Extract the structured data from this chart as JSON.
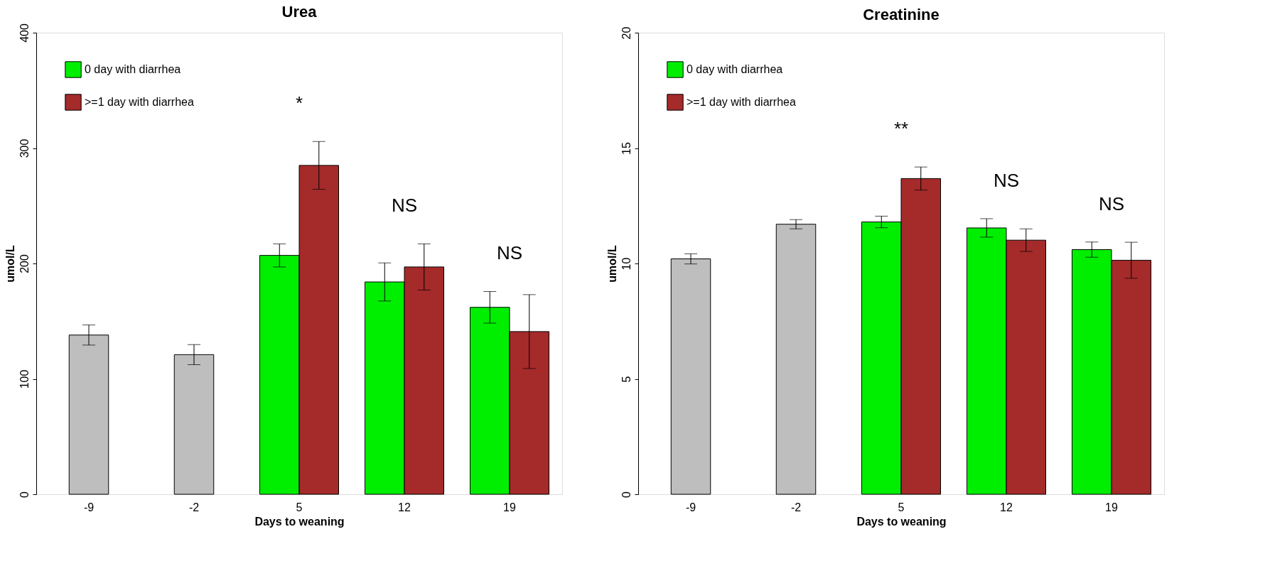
{
  "chart_data": [
    {
      "type": "bar",
      "title": "Urea",
      "xlabel": "Days to weaning",
      "ylabel": "umol/L",
      "categories": [
        "-9",
        "-2",
        "5",
        "12",
        "19"
      ],
      "series": [
        {
          "color": "#bebebe",
          "values": [
            138,
            121,
            null,
            null,
            null
          ],
          "errors": [
            8.7,
            8.7,
            null,
            null,
            null
          ]
        },
        {
          "name": "0 day with diarrhea",
          "color": "#00ee00",
          "values": [
            null,
            null,
            207,
            184,
            162
          ],
          "errors": [
            null,
            null,
            10,
            16.5,
            13.7
          ]
        },
        {
          "name": ">=1 day with diarrhea",
          "color": "#a52a2a",
          "values": [
            null,
            null,
            285,
            197,
            141
          ],
          "errors": [
            null,
            null,
            20.7,
            20,
            32
          ]
        }
      ],
      "ylim": [
        0,
        400
      ],
      "yticks": [
        0,
        100,
        200,
        300,
        400
      ],
      "grid": false,
      "legend": "top left",
      "annotations": [
        "*",
        "NS",
        "NS"
      ]
    },
    {
      "type": "bar",
      "title": "Creatinine",
      "xlabel": "Days to weaning",
      "ylabel": "umol/L",
      "categories": [
        "-9",
        "-2",
        "5",
        "12",
        "19"
      ],
      "series": [
        {
          "color": "#bebebe",
          "values": [
            10.2,
            11.7,
            null,
            null,
            null
          ],
          "errors": [
            0.22,
            0.2,
            null,
            null,
            null
          ]
        },
        {
          "name": "0 day with diarrhea",
          "color": "#00ee00",
          "values": [
            null,
            null,
            11.8,
            11.54,
            10.6
          ],
          "errors": [
            null,
            null,
            0.25,
            0.4,
            0.33
          ]
        },
        {
          "name": ">=1 day with diarrhea",
          "color": "#a52a2a",
          "values": [
            null,
            null,
            13.68,
            11.01,
            10.14
          ],
          "errors": [
            null,
            null,
            0.5,
            0.49,
            0.78
          ]
        }
      ],
      "ylim": [
        0,
        20
      ],
      "yticks": [
        0,
        5,
        10,
        15,
        20
      ],
      "grid": false,
      "legend": "top left",
      "annotations": [
        "**",
        "NS",
        "NS"
      ]
    }
  ]
}
